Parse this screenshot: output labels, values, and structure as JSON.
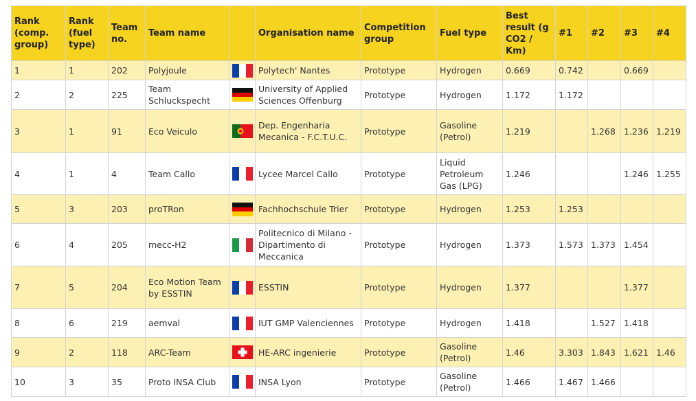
{
  "table": {
    "columns": [
      "Rank (comp. group)",
      "Rank (fuel type)",
      "Team no.",
      "Team name",
      "Organisation name",
      "Competition group",
      "Fuel type",
      "Best result (g CO2 / Km)",
      "#1",
      "#2",
      "#3",
      "#4"
    ],
    "rows": [
      [
        1,
        1,
        202,
        "Polyjoule",
        "Polytech' Nantes",
        "Prototype",
        "Hydrogen",
        0.669,
        0.742,
        null,
        0.669,
        null
      ],
      [
        2,
        2,
        225,
        "Team Schluckspecht",
        "University of Applied Sciences Offenburg",
        "Prototype",
        "Hydrogen",
        1.172,
        1.172,
        null,
        null,
        null
      ],
      [
        3,
        1,
        91,
        "Eco Veiculo",
        "Dep. Engenharia Mecanica - F.C.T.U.C.",
        "Prototype",
        "Gasoline (Petrol)",
        1.219,
        null,
        1.268,
        1.236,
        1.219
      ],
      [
        4,
        1,
        4,
        "Team Callo",
        "Lycee Marcel Callo",
        "Prototype",
        "Liquid Petroleum Gas (LPG)",
        1.246,
        null,
        null,
        1.246,
        1.255
      ],
      [
        5,
        3,
        203,
        "proTRon",
        "Fachhochschule Trier",
        "Prototype",
        "Hydrogen",
        1.253,
        1.253,
        null,
        null,
        null
      ],
      [
        6,
        4,
        205,
        "mecc-H2",
        "Politecnico di Milano - Dipartimento di Meccanica",
        "Prototype",
        "Hydrogen",
        1.373,
        1.573,
        1.373,
        1.454,
        null
      ],
      [
        7,
        5,
        204,
        "Eco Motion Team by ESSTIN",
        "ESSTIN",
        "Prototype",
        "Hydrogen",
        1.377,
        null,
        null,
        1.377,
        null
      ],
      [
        8,
        6,
        219,
        "aemval",
        "IUT GMP Valenciennes",
        "Prototype",
        "Hydrogen",
        1.418,
        null,
        1.527,
        1.418,
        null
      ],
      [
        9,
        2,
        118,
        "ARC-Team",
        "HE-ARC ingenierie",
        "Prototype",
        "Gasoline (Petrol)",
        1.46,
        3.303,
        1.843,
        1.621,
        1.46
      ],
      [
        10,
        3,
        35,
        "Proto INSA Club",
        "INSA Lyon",
        "Prototype",
        "Gasoline (Petrol)",
        1.466,
        1.467,
        1.466,
        null,
        null
      ]
    ]
  }
}
